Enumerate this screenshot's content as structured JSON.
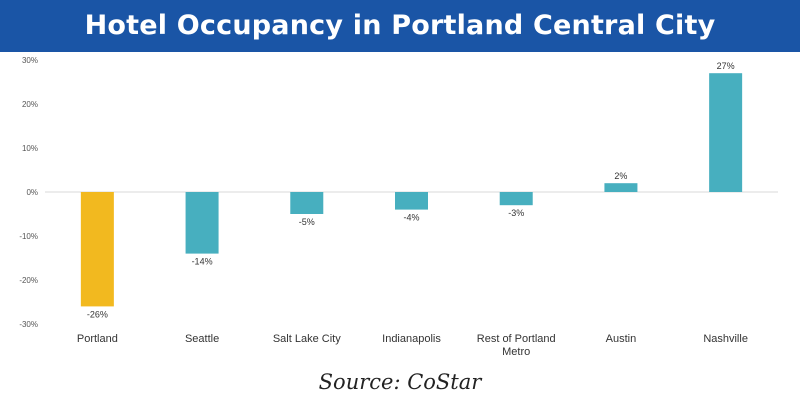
{
  "header": {
    "title": "Hotel Occupancy in Portland Central City"
  },
  "chart_data": {
    "type": "bar",
    "title": "Hotel Occupancy in Portland Central City",
    "xlabel": "",
    "ylabel": "",
    "categories": [
      "Portland",
      "Seattle",
      "Salt Lake City",
      "Indianapolis",
      "Rest of Portland Metro",
      "Austin",
      "Nashville"
    ],
    "category_lines": [
      [
        "Portland"
      ],
      [
        "Seattle"
      ],
      [
        "Salt Lake City"
      ],
      [
        "Indianapolis"
      ],
      [
        "Rest of Portland",
        "Metro"
      ],
      [
        "Austin"
      ],
      [
        "Nashville"
      ]
    ],
    "values": [
      -26,
      -14,
      -5,
      -4,
      -3,
      2,
      27
    ],
    "data_labels": [
      "-26%",
      "-14%",
      "-5%",
      "-4%",
      "-3%",
      "2%",
      "27%"
    ],
    "ylim": [
      -30,
      30
    ],
    "yticks": [
      30,
      20,
      10,
      0,
      -10,
      -20,
      -30
    ],
    "ytick_labels": [
      "30%",
      "20%",
      "10%",
      "0%",
      "-10%",
      "-20%",
      "-30%"
    ],
    "bar_colors": [
      "#f2b91f",
      "#47afbf",
      "#47afbf",
      "#47afbf",
      "#47afbf",
      "#47afbf",
      "#47afbf"
    ],
    "grid": false,
    "legend": "none"
  },
  "footer": {
    "source": "Source: CoStar"
  },
  "colors": {
    "banner": "#1a55a6",
    "highlight": "#f2b91f",
    "bar": "#47afbf"
  }
}
